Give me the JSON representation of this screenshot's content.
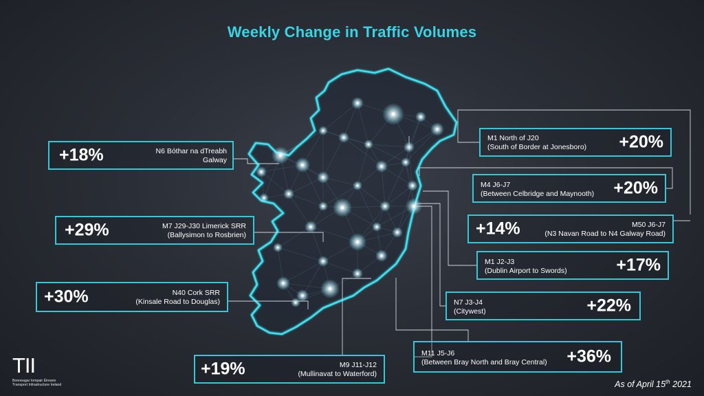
{
  "title": "Weekly Change in Traffic Volumes",
  "accent_color": "#39d3e3",
  "locations": [
    {
      "id": "n6",
      "pct": "+18%",
      "line1": "N6 Bóthar na dTreabh",
      "line2": "Galway"
    },
    {
      "id": "m7",
      "pct": "+29%",
      "line1": "M7 J29-J30 Limerick SRR",
      "line2": "(Ballysimon to Rosbrien)"
    },
    {
      "id": "n40",
      "pct": "+30%",
      "line1": "N40 Cork SRR",
      "line2": "(Kinsale Road to Douglas)"
    },
    {
      "id": "m9",
      "pct": "+19%",
      "line1": "M9 J11-J12",
      "line2": "(Mullinavat to Waterford)"
    },
    {
      "id": "m1n",
      "pct": "+20%",
      "line1": "M1 North of J20",
      "line2": "(South of Border at Jonesboro)"
    },
    {
      "id": "m4",
      "pct": "+20%",
      "line1": "M4 J6-J7",
      "line2": "(Between Celbridge and Maynooth)"
    },
    {
      "id": "m50",
      "pct": "+14%",
      "line1": "M50 J6-J7",
      "line2": "(N3 Navan Road to N4 Galway Road)"
    },
    {
      "id": "m1s",
      "pct": "+17%",
      "line1": "M1 J2-J3",
      "line2": "(Dublin Airport to Swords)"
    },
    {
      "id": "n7",
      "pct": "+22%",
      "line1": "N7 J3-J4",
      "line2": "(Citywest)"
    },
    {
      "id": "m11",
      "pct": "+36%",
      "line1": "M11 J5-J6",
      "line2": "(Between Bray North and Bray Central)"
    }
  ],
  "logo": {
    "mark": "TII",
    "line1": "Bonneagar Iompair Éireann",
    "line2": "Transport Infrastructure Ireland"
  },
  "as_of": {
    "prefix": "As of April 15",
    "sup": "th",
    "suffix": " 2021"
  }
}
